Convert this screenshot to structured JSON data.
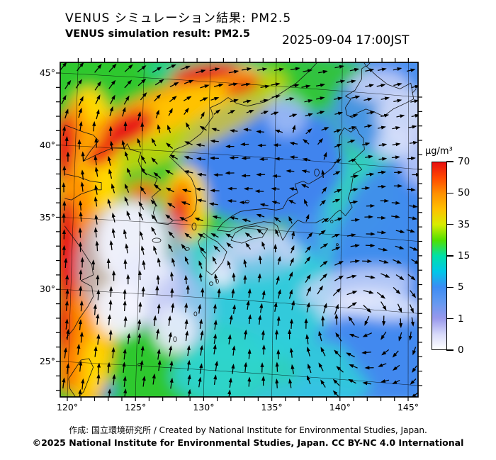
{
  "header": {
    "title_jp": "VENUS シミュレーション結果: PM2.5",
    "title_en": "VENUS simulation result: PM2.5",
    "timestamp": "2025-09-04 17:00JST"
  },
  "map": {
    "lon_labels": [
      "120°",
      "125°",
      "130°",
      "135°",
      "140°",
      "145°"
    ],
    "lat_labels": [
      "45°",
      "40°",
      "35°",
      "30°",
      "25°"
    ],
    "lon_range": [
      120,
      145
    ],
    "lat_range": [
      25,
      45
    ]
  },
  "colorbar": {
    "unit": "µg/m³",
    "ticks": [
      "70",
      "50",
      "35",
      "15",
      "5",
      "1",
      "0"
    ],
    "tick_values": [
      70,
      50,
      35,
      15,
      5,
      1,
      0
    ],
    "scale_colors": {
      "0": "#ffffff",
      "1": "#9898ec",
      "5": "#3c8cf4",
      "15": "#00e0a8",
      "35": "#d8ec00",
      "50": "#ff9000",
      "70": "#e81010"
    }
  },
  "footer": {
    "credit_line1": "作成: 国立環境研究所 / Created by National Institute for Environmental Studies, Japan.",
    "credit_line2": "©2025 National Institute for Environmental Studies, Japan. CC BY-NC 4.0 International"
  }
}
